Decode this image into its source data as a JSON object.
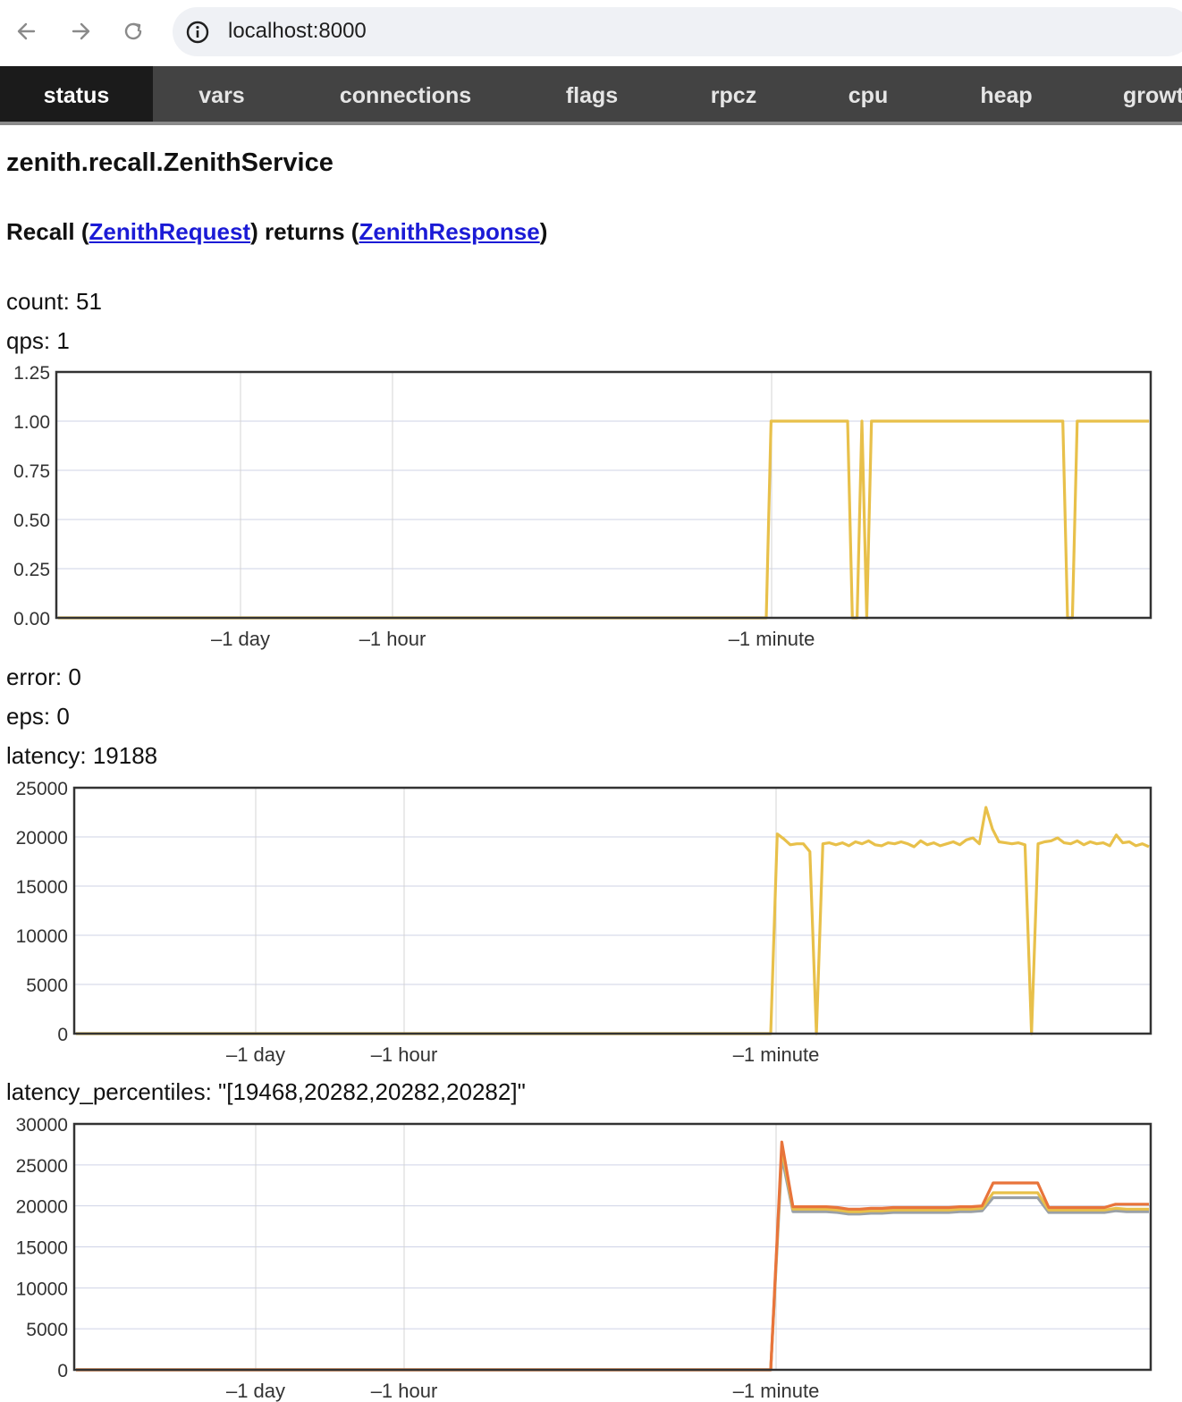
{
  "browser": {
    "url": "localhost:8000"
  },
  "tabs": [
    {
      "label": "status",
      "active": true
    },
    {
      "label": "vars"
    },
    {
      "label": "connections"
    },
    {
      "label": "flags"
    },
    {
      "label": "rpcz"
    },
    {
      "label": "cpu"
    },
    {
      "label": "heap"
    },
    {
      "label": "growth"
    }
  ],
  "service": {
    "name": "zenith.recall.ZenithService",
    "method": {
      "name": "Recall",
      "request": "ZenithRequest",
      "returns_word": "returns",
      "response": "ZenithResponse"
    }
  },
  "stats": {
    "count": "count: 51",
    "qps": "qps: 1",
    "error": "error: 0",
    "eps": "eps: 0",
    "latency": "latency: 19188",
    "latency_percentiles": "latency_percentiles: \"[19468,20282,20282,20282]\""
  },
  "colors": {
    "series_yellow": "#e8c04a",
    "series_orange": "#e8743b",
    "series_gray": "#9aa0a6",
    "grid": "#cfd3e6",
    "frame": "#333333"
  },
  "chart_data": [
    {
      "name": "qps",
      "type": "line",
      "ylim": [
        0,
        1.25
      ],
      "yticks": [
        "0.00",
        "0.25",
        "0.50",
        "0.75",
        "1.00",
        "1.25"
      ],
      "xticks": [
        "–1 day",
        "–1 hour",
        "–1 minute"
      ],
      "series": [
        {
          "color": "#e8c04a",
          "values": [
            0,
            0,
            0,
            0,
            0,
            0,
            0,
            0,
            0,
            0,
            0,
            0,
            0,
            0,
            0,
            0,
            0,
            0,
            0,
            0,
            0,
            0,
            0,
            0,
            0,
            0,
            0,
            0,
            0,
            0,
            0,
            0,
            0,
            0,
            0,
            0,
            0,
            0,
            0,
            0,
            0,
            0,
            0,
            0,
            0,
            0,
            0,
            0,
            0,
            0,
            0,
            0,
            0,
            0,
            0,
            0,
            0,
            0,
            0,
            0,
            0,
            0,
            0,
            0,
            0,
            0,
            0,
            0,
            0,
            0,
            0,
            0,
            0,
            0,
            0,
            0,
            0,
            0,
            0,
            0,
            0,
            0,
            0,
            0,
            0,
            0,
            0,
            0,
            0,
            0,
            0,
            0,
            0,
            0,
            0,
            0,
            0,
            0,
            0,
            0,
            0,
            0,
            0,
            0,
            0,
            0,
            0,
            0,
            0,
            0,
            0,
            0,
            0,
            0,
            0,
            0,
            0,
            0,
            0,
            0,
            0,
            0,
            0,
            0,
            0,
            0,
            0,
            0,
            0,
            0,
            0,
            0,
            0,
            0,
            0,
            0,
            0,
            0,
            0,
            0,
            0,
            0,
            0,
            0,
            0,
            0,
            0,
            0,
            0,
            0,
            0,
            0,
            0,
            0,
            0,
            0,
            0,
            0,
            0,
            0,
            1,
            1,
            1,
            1,
            1,
            1,
            1,
            1,
            1,
            1,
            1,
            1,
            1,
            1,
            1,
            1,
            1,
            0,
            0,
            1,
            0,
            1,
            1,
            1,
            1,
            1,
            1,
            1,
            1,
            1,
            1,
            1,
            1,
            1,
            1,
            1,
            1,
            1,
            1,
            1,
            1,
            1,
            1,
            1,
            1,
            1,
            1,
            1,
            1,
            1,
            1,
            1,
            1,
            1,
            1,
            1,
            1,
            1,
            1,
            1,
            1,
            1,
            0,
            0,
            1,
            1,
            1,
            1,
            1,
            1,
            1,
            1,
            1,
            1,
            1,
            1,
            1,
            1,
            1,
            1
          ]
        }
      ]
    },
    {
      "name": "latency",
      "type": "line",
      "ylim": [
        0,
        25000
      ],
      "yticks": [
        "0",
        "5000",
        "10000",
        "15000",
        "20000",
        "25000"
      ],
      "xticks": [
        "–1 day",
        "–1 hour",
        "–1 minute"
      ],
      "series": [
        {
          "color": "#e8c04a",
          "values": [
            0,
            0,
            0,
            0,
            0,
            0,
            0,
            0,
            0,
            0,
            0,
            0,
            0,
            0,
            0,
            0,
            0,
            0,
            0,
            0,
            0,
            0,
            0,
            0,
            0,
            0,
            0,
            0,
            0,
            0,
            0,
            0,
            0,
            0,
            0,
            0,
            0,
            0,
            0,
            0,
            0,
            0,
            0,
            0,
            0,
            0,
            0,
            0,
            0,
            0,
            0,
            0,
            0,
            0,
            0,
            0,
            0,
            0,
            0,
            0,
            0,
            0,
            0,
            0,
            0,
            0,
            0,
            0,
            0,
            0,
            0,
            0,
            0,
            0,
            0,
            0,
            0,
            0,
            0,
            0,
            0,
            0,
            0,
            0,
            0,
            0,
            0,
            0,
            0,
            0,
            0,
            0,
            0,
            0,
            0,
            0,
            0,
            0,
            0,
            0,
            0,
            0,
            0,
            0,
            0,
            0,
            0,
            0,
            0,
            0,
            0,
            0,
            0,
            0,
            0,
            0,
            0,
            0,
            0,
            0,
            0,
            0,
            0,
            0,
            0,
            0,
            0,
            0,
            0,
            0,
            0,
            0,
            0,
            0,
            0,
            0,
            0,
            0,
            0,
            0,
            0,
            0,
            0,
            0,
            0,
            0,
            0,
            0,
            0,
            0,
            0,
            0,
            0,
            0,
            0,
            0,
            0,
            0,
            0,
            0,
            20300,
            19800,
            19200,
            19300,
            19300,
            18500,
            0,
            19300,
            19400,
            19200,
            19400,
            19100,
            19500,
            19300,
            19600,
            19200,
            19100,
            19400,
            19300,
            19500,
            19300,
            19000,
            19600,
            19200,
            19400,
            19100,
            19300,
            19500,
            19200,
            19700,
            19900,
            19300,
            23000,
            20800,
            19500,
            19400,
            19300,
            19400,
            19200,
            0,
            19300,
            19500,
            19600,
            19900,
            19400,
            19300,
            19600,
            19200,
            19500,
            19300,
            19400,
            19100,
            20200,
            19400,
            19500,
            19100,
            19300,
            19000
          ]
        }
      ]
    },
    {
      "name": "latency_percentiles",
      "type": "line",
      "ylim": [
        0,
        30000
      ],
      "yticks": [
        "0",
        "5000",
        "10000",
        "15000",
        "20000",
        "25000",
        "30000"
      ],
      "xticks": [
        "–1 day",
        "–1 hour",
        "–1 minute"
      ],
      "series": [
        {
          "color": "#9aa0a6",
          "values": [
            0,
            0,
            0,
            0,
            0,
            0,
            0,
            0,
            0,
            0,
            0,
            0,
            0,
            0,
            0,
            0,
            0,
            0,
            0,
            0,
            0,
            0,
            0,
            0,
            0,
            0,
            0,
            0,
            0,
            0,
            0,
            0,
            0,
            0,
            0,
            0,
            0,
            0,
            0,
            0,
            0,
            0,
            0,
            0,
            0,
            0,
            0,
            0,
            0,
            0,
            0,
            0,
            0,
            0,
            0,
            0,
            0,
            0,
            0,
            0,
            0,
            0,
            0,
            0,
            0,
            0,
            0,
            0,
            0,
            0,
            0,
            0,
            0,
            0,
            0,
            0,
            0,
            0,
            0,
            0,
            0,
            0,
            0,
            0,
            0,
            0,
            0,
            0,
            0,
            0,
            0,
            0,
            0,
            0,
            0,
            0,
            0,
            0,
            0,
            0,
            0,
            0,
            0,
            0,
            0,
            0,
            0,
            0,
            0,
            0,
            0,
            0,
            0,
            0,
            0,
            0,
            0,
            0,
            0,
            0,
            0,
            0,
            0,
            0,
            0,
            0,
            0,
            0,
            0,
            0,
            0,
            0,
            0,
            0,
            0,
            0,
            0,
            0,
            0,
            0,
            0,
            0,
            0,
            0,
            0,
            0,
            0,
            0,
            0,
            0,
            0,
            0,
            0,
            0,
            0,
            0,
            0,
            0,
            0,
            0,
            26000,
            19300,
            19300,
            19300,
            19300,
            19200,
            19000,
            19000,
            19100,
            19100,
            19200,
            19200,
            19200,
            19200,
            19200,
            19200,
            19300,
            19300,
            19400,
            21000,
            21000,
            21000,
            21000,
            21000,
            19200,
            19200,
            19200,
            19200,
            19200,
            19200,
            19400,
            19300,
            19300,
            19300
          ]
        },
        {
          "color": "#e8c04a",
          "values": [
            0,
            0,
            0,
            0,
            0,
            0,
            0,
            0,
            0,
            0,
            0,
            0,
            0,
            0,
            0,
            0,
            0,
            0,
            0,
            0,
            0,
            0,
            0,
            0,
            0,
            0,
            0,
            0,
            0,
            0,
            0,
            0,
            0,
            0,
            0,
            0,
            0,
            0,
            0,
            0,
            0,
            0,
            0,
            0,
            0,
            0,
            0,
            0,
            0,
            0,
            0,
            0,
            0,
            0,
            0,
            0,
            0,
            0,
            0,
            0,
            0,
            0,
            0,
            0,
            0,
            0,
            0,
            0,
            0,
            0,
            0,
            0,
            0,
            0,
            0,
            0,
            0,
            0,
            0,
            0,
            0,
            0,
            0,
            0,
            0,
            0,
            0,
            0,
            0,
            0,
            0,
            0,
            0,
            0,
            0,
            0,
            0,
            0,
            0,
            0,
            0,
            0,
            0,
            0,
            0,
            0,
            0,
            0,
            0,
            0,
            0,
            0,
            0,
            0,
            0,
            0,
            0,
            0,
            0,
            0,
            0,
            0,
            0,
            0,
            0,
            0,
            0,
            0,
            0,
            0,
            0,
            0,
            0,
            0,
            0,
            0,
            0,
            0,
            0,
            0,
            0,
            0,
            0,
            0,
            0,
            0,
            0,
            0,
            0,
            0,
            0,
            0,
            0,
            0,
            0,
            0,
            0,
            0,
            0,
            0,
            27000,
            19600,
            19600,
            19600,
            19600,
            19500,
            19300,
            19300,
            19400,
            19400,
            19500,
            19500,
            19500,
            19500,
            19500,
            19500,
            19600,
            19600,
            19700,
            21600,
            21600,
            21600,
            21600,
            21600,
            19500,
            19500,
            19500,
            19500,
            19500,
            19500,
            19700,
            19600,
            19600,
            19600
          ]
        },
        {
          "color": "#e8743b",
          "values": [
            0,
            0,
            0,
            0,
            0,
            0,
            0,
            0,
            0,
            0,
            0,
            0,
            0,
            0,
            0,
            0,
            0,
            0,
            0,
            0,
            0,
            0,
            0,
            0,
            0,
            0,
            0,
            0,
            0,
            0,
            0,
            0,
            0,
            0,
            0,
            0,
            0,
            0,
            0,
            0,
            0,
            0,
            0,
            0,
            0,
            0,
            0,
            0,
            0,
            0,
            0,
            0,
            0,
            0,
            0,
            0,
            0,
            0,
            0,
            0,
            0,
            0,
            0,
            0,
            0,
            0,
            0,
            0,
            0,
            0,
            0,
            0,
            0,
            0,
            0,
            0,
            0,
            0,
            0,
            0,
            0,
            0,
            0,
            0,
            0,
            0,
            0,
            0,
            0,
            0,
            0,
            0,
            0,
            0,
            0,
            0,
            0,
            0,
            0,
            0,
            0,
            0,
            0,
            0,
            0,
            0,
            0,
            0,
            0,
            0,
            0,
            0,
            0,
            0,
            0,
            0,
            0,
            0,
            0,
            0,
            0,
            0,
            0,
            0,
            0,
            0,
            0,
            0,
            0,
            0,
            0,
            0,
            0,
            0,
            0,
            0,
            0,
            0,
            0,
            0,
            0,
            0,
            0,
            0,
            0,
            0,
            0,
            0,
            0,
            0,
            0,
            0,
            0,
            0,
            0,
            0,
            0,
            0,
            0,
            0,
            27800,
            19900,
            19900,
            19900,
            19900,
            19800,
            19600,
            19600,
            19700,
            19700,
            19800,
            19800,
            19800,
            19800,
            19800,
            19800,
            19900,
            19900,
            20000,
            22800,
            22800,
            22800,
            22800,
            22800,
            19800,
            19800,
            19800,
            19800,
            19800,
            19800,
            20200,
            20200,
            20200,
            20200
          ]
        }
      ]
    }
  ]
}
